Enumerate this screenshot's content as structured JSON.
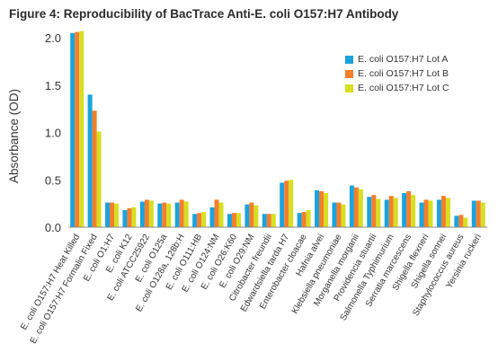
{
  "chart_data": {
    "type": "bar",
    "title": "Figure 4: Reproducibility of BacTrace Anti-E. coli O157:H7 Antibody",
    "xlabel": "",
    "ylabel": "Absorbance (OD)",
    "ylim": [
      0,
      2.0
    ],
    "yticks": [
      "0.0",
      "0.5",
      "1.0",
      "1.5",
      "2.0"
    ],
    "grid": false,
    "legend_position": "top-right",
    "categories": [
      "E. coli O157:H7 Heat Killed",
      "E. coli O157:H7 Formalin Fixed",
      "E. coli O1:H7",
      "E. coli K12",
      "E. coli ATCC25922",
      "E. coli O125a",
      "E. coli O128a, 128b:H",
      "E. coli O111:HB",
      "E. coli O124:NM",
      "E. coli O26:K60",
      "E. coli O29:NM",
      "Citrobacter freundii",
      "Edwardsiella tarda H7",
      "Enterobacter cloacae",
      "Hafnia alvei",
      "Klebsiella pneumoniae",
      "Morganella morganii",
      "Providencia stuartii",
      "Salmonella Typhimurium",
      "Serratia marcescens",
      "Shigella flexneri",
      "Shigella sonnei",
      "Staphylococcus aureus",
      "Yersinia ruckeri"
    ],
    "series": [
      {
        "name": "E. coli O157:H7 Lot A",
        "color": "#1ba3dc",
        "values": [
          2.05,
          1.4,
          0.26,
          0.18,
          0.27,
          0.25,
          0.26,
          0.14,
          0.21,
          0.14,
          0.24,
          0.14,
          0.47,
          0.15,
          0.39,
          0.26,
          0.44,
          0.32,
          0.29,
          0.36,
          0.26,
          0.29,
          0.12,
          0.28
        ]
      },
      {
        "name": "E. coli O157:H7 Lot B",
        "color": "#f47e2c",
        "values": [
          2.06,
          1.23,
          0.26,
          0.2,
          0.29,
          0.26,
          0.29,
          0.15,
          0.29,
          0.15,
          0.26,
          0.14,
          0.49,
          0.16,
          0.38,
          0.26,
          0.42,
          0.34,
          0.33,
          0.38,
          0.29,
          0.33,
          0.13,
          0.28
        ]
      },
      {
        "name": "E. coli O157:H7 Lot C",
        "color": "#d7df23",
        "values": [
          2.07,
          1.01,
          0.25,
          0.21,
          0.28,
          0.25,
          0.27,
          0.16,
          0.26,
          0.15,
          0.23,
          0.14,
          0.5,
          0.18,
          0.36,
          0.24,
          0.4,
          0.3,
          0.31,
          0.34,
          0.28,
          0.31,
          0.1,
          0.26
        ]
      }
    ]
  }
}
